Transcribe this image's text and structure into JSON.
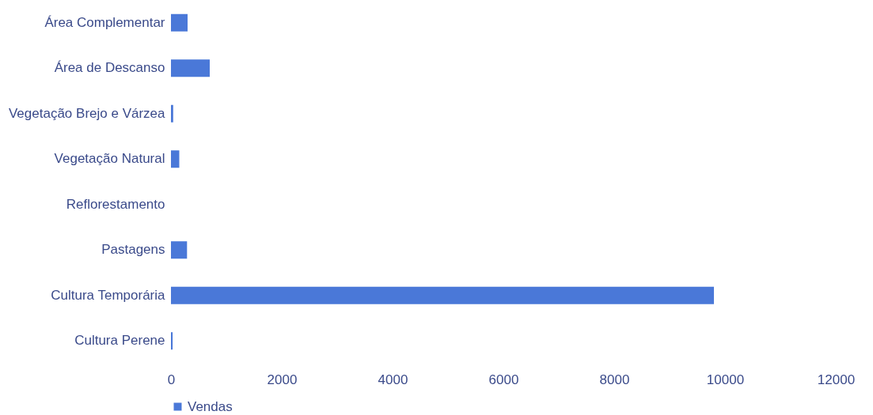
{
  "chart_data": {
    "type": "bar",
    "orientation": "horizontal",
    "categories": [
      "Área Complementar",
      "Área de Descanso",
      "Vegetação Brejo e Várzea",
      "Vegetação Natural",
      "Reflorestamento",
      "Pastagens",
      "Cultura Temporária",
      "Cultura Perene"
    ],
    "series": [
      {
        "name": "Vendas",
        "color": "#4a78d8",
        "values": [
          300,
          700,
          40,
          150,
          0,
          290,
          9800,
          30
        ]
      }
    ],
    "xlim": [
      0,
      12000
    ],
    "xticks": [
      0,
      2000,
      4000,
      6000,
      8000,
      10000,
      12000
    ],
    "grid": false,
    "legend": "bottom"
  }
}
